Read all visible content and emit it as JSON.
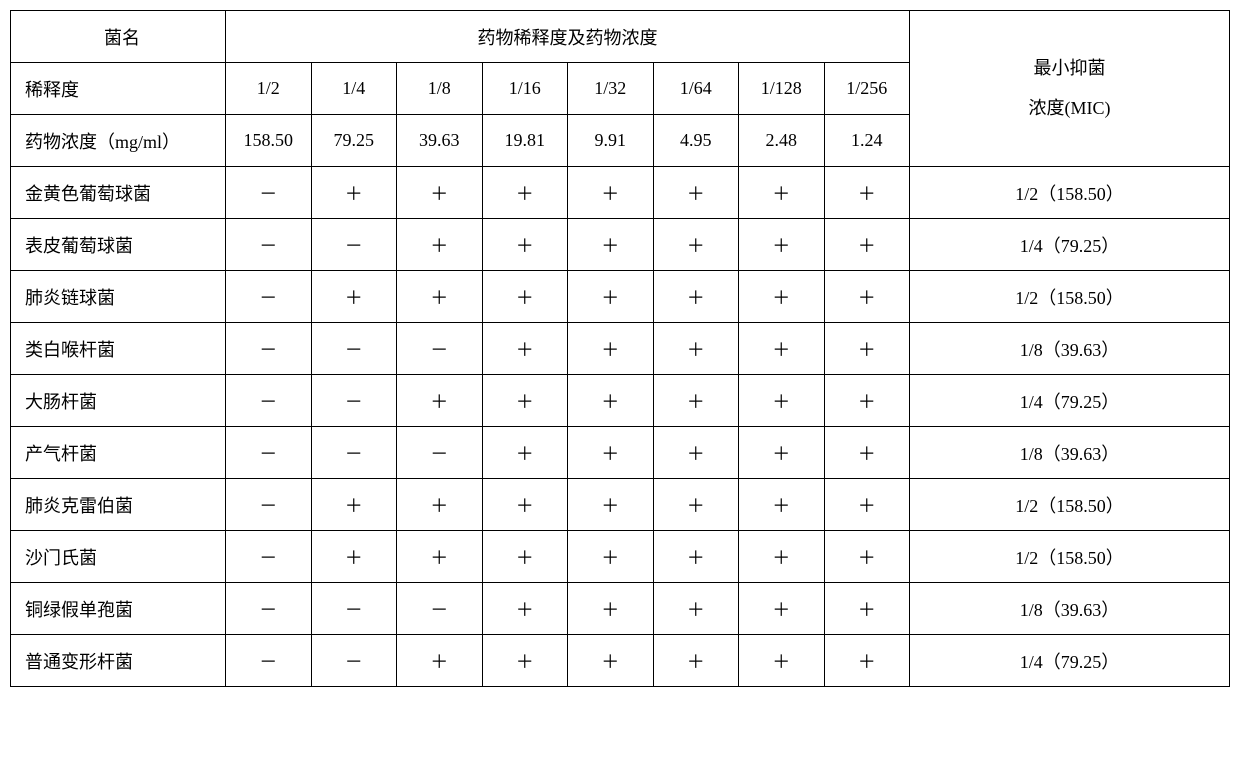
{
  "header": {
    "bacteria_name_label": "菌名",
    "dilution_concentration_header": "药物稀释度及药物浓度",
    "dilution_label": "稀释度",
    "concentration_label": "药物浓度（mg/ml）",
    "mic_label_line1": "最小抑菌",
    "mic_label_line2": "浓度(MIC)"
  },
  "dilutions": [
    "1/2",
    "1/4",
    "1/8",
    "1/16",
    "1/32",
    "1/64",
    "1/128",
    "1/256"
  ],
  "concentrations": [
    "158.50",
    "79.25",
    "39.63",
    "19.81",
    "9.91",
    "4.95",
    "2.48",
    "1.24"
  ],
  "rows": [
    {
      "name": "金黄色葡萄球菌",
      "v": [
        "－",
        "＋",
        "＋",
        "＋",
        "＋",
        "＋",
        "＋",
        "＋"
      ],
      "mic": "1/2（158.50）"
    },
    {
      "name": "表皮葡萄球菌",
      "v": [
        "－",
        "－",
        "＋",
        "＋",
        "＋",
        "＋",
        "＋",
        "＋"
      ],
      "mic": "1/4（79.25）"
    },
    {
      "name": "肺炎链球菌",
      "v": [
        "－",
        "＋",
        "＋",
        "＋",
        "＋",
        "＋",
        "＋",
        "＋"
      ],
      "mic": "1/2（158.50）"
    },
    {
      "name": "类白喉杆菌",
      "v": [
        "－",
        "－",
        "－",
        "＋",
        "＋",
        "＋",
        "＋",
        "＋"
      ],
      "mic": "1/8（39.63）"
    },
    {
      "name": "大肠杆菌",
      "v": [
        "－",
        "－",
        "＋",
        "＋",
        "＋",
        "＋",
        "＋",
        "＋"
      ],
      "mic": "1/4（79.25）"
    },
    {
      "name": "产气杆菌",
      "v": [
        "－",
        "－",
        "－",
        "＋",
        "＋",
        "＋",
        "＋",
        "＋"
      ],
      "mic": "1/8（39.63）"
    },
    {
      "name": "肺炎克雷伯菌",
      "v": [
        "－",
        "＋",
        "＋",
        "＋",
        "＋",
        "＋",
        "＋",
        "＋"
      ],
      "mic": "1/2（158.50）"
    },
    {
      "name": "沙门氏菌",
      "v": [
        "－",
        "＋",
        "＋",
        "＋",
        "＋",
        "＋",
        "＋",
        "＋"
      ],
      "mic": "1/2（158.50）"
    },
    {
      "name": "铜绿假单孢菌",
      "v": [
        "－",
        "－",
        "－",
        "＋",
        "＋",
        "＋",
        "＋",
        "＋"
      ],
      "mic": "1/8（39.63）"
    },
    {
      "name": "普通变形杆菌",
      "v": [
        "－",
        "－",
        "＋",
        "＋",
        "＋",
        "＋",
        "＋",
        "＋"
      ],
      "mic": "1/4（79.25）"
    }
  ]
}
